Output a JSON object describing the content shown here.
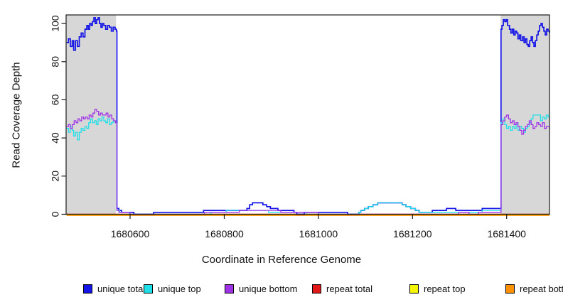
{
  "figure": {
    "x_axis_title": "Coordinate in Reference Genome",
    "y_axis_title": "Read Coverage Depth"
  },
  "chart_data": {
    "type": "line",
    "title": "",
    "xlabel": "Coordinate in Reference Genome",
    "ylabel": "Read Coverage Depth",
    "xlim": [
      1680464,
      1681491
    ],
    "ylim": [
      0,
      104.5
    ],
    "xticks": [
      1680600,
      1680800,
      1681000,
      1681200,
      1681400
    ],
    "yticks": [
      0,
      20,
      40,
      60,
      80,
      100
    ],
    "grid": false,
    "legend_position": "bottom",
    "line_style": "step",
    "shaded_regions": [
      {
        "x0": 1680464,
        "x1": 1680570,
        "color": "#d7d7d7"
      },
      {
        "x0": 1681387,
        "x1": 1681491,
        "color": "#d7d7d7"
      }
    ],
    "series": [
      {
        "name": "unique total",
        "color": "#1414e6",
        "points": [
          [
            1680465,
            90
          ],
          [
            1680469,
            92
          ],
          [
            1680473,
            88
          ],
          [
            1680477,
            91
          ],
          [
            1680480,
            86
          ],
          [
            1680484,
            91
          ],
          [
            1680488,
            88
          ],
          [
            1680492,
            93
          ],
          [
            1680496,
            95
          ],
          [
            1680500,
            93
          ],
          [
            1680504,
            97
          ],
          [
            1680508,
            99
          ],
          [
            1680511,
            97
          ],
          [
            1680514,
            100
          ],
          [
            1680517,
            99
          ],
          [
            1680520,
            101
          ],
          [
            1680523,
            103
          ],
          [
            1680526,
            100
          ],
          [
            1680529,
            102
          ],
          [
            1680532,
            103
          ],
          [
            1680535,
            100
          ],
          [
            1680538,
            98
          ],
          [
            1680541,
            100
          ],
          [
            1680544,
            99
          ],
          [
            1680548,
            97
          ],
          [
            1680552,
            99
          ],
          [
            1680556,
            98
          ],
          [
            1680560,
            96
          ],
          [
            1680564,
            98
          ],
          [
            1680568,
            97
          ],
          [
            1680571,
            96
          ],
          [
            1680572,
            3
          ],
          [
            1680576,
            2
          ],
          [
            1680582,
            1
          ],
          [
            1680604,
            1
          ],
          [
            1680608,
            0
          ],
          [
            1680646,
            0
          ],
          [
            1680650,
            1
          ],
          [
            1680752,
            1
          ],
          [
            1680756,
            2
          ],
          [
            1680844,
            2
          ],
          [
            1680848,
            3
          ],
          [
            1680854,
            5
          ],
          [
            1680860,
            6
          ],
          [
            1680876,
            6
          ],
          [
            1680882,
            5
          ],
          [
            1680890,
            4
          ],
          [
            1680898,
            3
          ],
          [
            1680910,
            3
          ],
          [
            1680914,
            2
          ],
          [
            1680944,
            2
          ],
          [
            1680948,
            1
          ],
          [
            1680954,
            0
          ],
          [
            1680966,
            0
          ],
          [
            1680970,
            1
          ],
          [
            1681058,
            1
          ],
          [
            1681062,
            0
          ],
          [
            1681082,
            0
          ],
          [
            1681086,
            1
          ],
          [
            1681090,
            2
          ],
          [
            1681098,
            3
          ],
          [
            1681106,
            4
          ],
          [
            1681116,
            5
          ],
          [
            1681126,
            6
          ],
          [
            1681170,
            6
          ],
          [
            1681178,
            5
          ],
          [
            1681186,
            4
          ],
          [
            1681196,
            3
          ],
          [
            1681206,
            2
          ],
          [
            1681214,
            1
          ],
          [
            1681238,
            1
          ],
          [
            1681242,
            2
          ],
          [
            1681268,
            2
          ],
          [
            1681272,
            3
          ],
          [
            1681288,
            3
          ],
          [
            1681292,
            2
          ],
          [
            1681336,
            2
          ],
          [
            1681348,
            3
          ],
          [
            1681386,
            3
          ],
          [
            1681388,
            97
          ],
          [
            1681390,
            99
          ],
          [
            1681393,
            102
          ],
          [
            1681396,
            101
          ],
          [
            1681399,
            102
          ],
          [
            1681402,
            99
          ],
          [
            1681406,
            97
          ],
          [
            1681409,
            95
          ],
          [
            1681412,
            97
          ],
          [
            1681415,
            94
          ],
          [
            1681418,
            96
          ],
          [
            1681421,
            95
          ],
          [
            1681424,
            92
          ],
          [
            1681427,
            94
          ],
          [
            1681430,
            91
          ],
          [
            1681434,
            93
          ],
          [
            1681437,
            90
          ],
          [
            1681440,
            92
          ],
          [
            1681443,
            89
          ],
          [
            1681446,
            88
          ],
          [
            1681449,
            91
          ],
          [
            1681452,
            93
          ],
          [
            1681455,
            90
          ],
          [
            1681458,
            88
          ],
          [
            1681461,
            91
          ],
          [
            1681464,
            94
          ],
          [
            1681467,
            96
          ],
          [
            1681470,
            99
          ],
          [
            1681473,
            100
          ],
          [
            1681476,
            98
          ],
          [
            1681479,
            96
          ],
          [
            1681482,
            94
          ],
          [
            1681485,
            97
          ],
          [
            1681488,
            96
          ],
          [
            1681491,
            95
          ]
        ]
      },
      {
        "name": "unique top",
        "color": "#1fe0e8",
        "points": [
          [
            1680465,
            45
          ],
          [
            1680469,
            43
          ],
          [
            1680473,
            46
          ],
          [
            1680477,
            44
          ],
          [
            1680480,
            41
          ],
          [
            1680484,
            43
          ],
          [
            1680488,
            39
          ],
          [
            1680492,
            43
          ],
          [
            1680496,
            45
          ],
          [
            1680500,
            44
          ],
          [
            1680504,
            46
          ],
          [
            1680508,
            45
          ],
          [
            1680512,
            48
          ],
          [
            1680516,
            50
          ],
          [
            1680520,
            48
          ],
          [
            1680524,
            49
          ],
          [
            1680528,
            47
          ],
          [
            1680532,
            50
          ],
          [
            1680536,
            49
          ],
          [
            1680540,
            51
          ],
          [
            1680544,
            49
          ],
          [
            1680548,
            48
          ],
          [
            1680552,
            50
          ],
          [
            1680556,
            47
          ],
          [
            1680560,
            48
          ],
          [
            1680564,
            49
          ],
          [
            1680568,
            48
          ],
          [
            1680571,
            48
          ],
          [
            1680572,
            2
          ],
          [
            1680578,
            1
          ],
          [
            1680594,
            1
          ],
          [
            1680598,
            0
          ],
          [
            1680768,
            0
          ],
          [
            1680772,
            1
          ],
          [
            1680800,
            1
          ],
          [
            1680804,
            2
          ],
          [
            1680890,
            2
          ],
          [
            1680894,
            1
          ],
          [
            1680970,
            1
          ],
          [
            1680974,
            0
          ],
          [
            1681062,
            0
          ],
          [
            1681086,
            1
          ],
          [
            1681090,
            2
          ],
          [
            1681098,
            3
          ],
          [
            1681106,
            4
          ],
          [
            1681116,
            5
          ],
          [
            1681126,
            6
          ],
          [
            1681170,
            6
          ],
          [
            1681178,
            5
          ],
          [
            1681186,
            4
          ],
          [
            1681196,
            3
          ],
          [
            1681206,
            2
          ],
          [
            1681214,
            1
          ],
          [
            1681344,
            1
          ],
          [
            1681348,
            2
          ],
          [
            1681386,
            2
          ],
          [
            1681388,
            48
          ],
          [
            1681392,
            50
          ],
          [
            1681396,
            47
          ],
          [
            1681400,
            45
          ],
          [
            1681404,
            46
          ],
          [
            1681408,
            44
          ],
          [
            1681412,
            46
          ],
          [
            1681416,
            45
          ],
          [
            1681420,
            47
          ],
          [
            1681424,
            44
          ],
          [
            1681428,
            46
          ],
          [
            1681432,
            45
          ],
          [
            1681436,
            43
          ],
          [
            1681440,
            45
          ],
          [
            1681444,
            46
          ],
          [
            1681448,
            48
          ],
          [
            1681452,
            50
          ],
          [
            1681456,
            52
          ],
          [
            1681468,
            52
          ],
          [
            1681472,
            49
          ],
          [
            1681476,
            51
          ],
          [
            1681480,
            50
          ],
          [
            1681484,
            52
          ],
          [
            1681488,
            51
          ],
          [
            1681491,
            50
          ]
        ]
      },
      {
        "name": "unique bottom",
        "color": "#a032e6",
        "points": [
          [
            1680465,
            46
          ],
          [
            1680469,
            47
          ],
          [
            1680473,
            45
          ],
          [
            1680477,
            47
          ],
          [
            1680481,
            49
          ],
          [
            1680485,
            48
          ],
          [
            1680489,
            50
          ],
          [
            1680493,
            49
          ],
          [
            1680497,
            51
          ],
          [
            1680501,
            50
          ],
          [
            1680505,
            51
          ],
          [
            1680509,
            50
          ],
          [
            1680513,
            52
          ],
          [
            1680517,
            51
          ],
          [
            1680521,
            53
          ],
          [
            1680525,
            55
          ],
          [
            1680529,
            54
          ],
          [
            1680533,
            52
          ],
          [
            1680537,
            53
          ],
          [
            1680541,
            52
          ],
          [
            1680545,
            52
          ],
          [
            1680549,
            53
          ],
          [
            1680553,
            51
          ],
          [
            1680557,
            52
          ],
          [
            1680561,
            50
          ],
          [
            1680565,
            49
          ],
          [
            1680569,
            48
          ],
          [
            1680571,
            48
          ],
          [
            1680572,
            2
          ],
          [
            1680576,
            1
          ],
          [
            1680596,
            1
          ],
          [
            1680600,
            0
          ],
          [
            1680754,
            0
          ],
          [
            1680758,
            1
          ],
          [
            1680828,
            1
          ],
          [
            1680832,
            2
          ],
          [
            1680916,
            2
          ],
          [
            1680920,
            1
          ],
          [
            1680996,
            1
          ],
          [
            1681000,
            0
          ],
          [
            1681294,
            0
          ],
          [
            1681298,
            1
          ],
          [
            1681316,
            1
          ],
          [
            1681320,
            0
          ],
          [
            1681336,
            0
          ],
          [
            1681340,
            1
          ],
          [
            1681386,
            1
          ],
          [
            1681388,
            47
          ],
          [
            1681392,
            49
          ],
          [
            1681396,
            51
          ],
          [
            1681400,
            52
          ],
          [
            1681404,
            50
          ],
          [
            1681408,
            48
          ],
          [
            1681412,
            49
          ],
          [
            1681416,
            47
          ],
          [
            1681420,
            48
          ],
          [
            1681424,
            46
          ],
          [
            1681428,
            44
          ],
          [
            1681432,
            42
          ],
          [
            1681436,
            44
          ],
          [
            1681440,
            46
          ],
          [
            1681444,
            47
          ],
          [
            1681448,
            49
          ],
          [
            1681452,
            47
          ],
          [
            1681456,
            45
          ],
          [
            1681460,
            46
          ],
          [
            1681464,
            48
          ],
          [
            1681468,
            47
          ],
          [
            1681472,
            46
          ],
          [
            1681476,
            48
          ],
          [
            1681480,
            45
          ],
          [
            1681484,
            46
          ],
          [
            1681488,
            46
          ],
          [
            1681491,
            45
          ]
        ]
      },
      {
        "name": "repeat total",
        "color": "#e01818",
        "points": [
          [
            1680465,
            0
          ],
          [
            1681491,
            0
          ]
        ]
      },
      {
        "name": "repeat top",
        "color": "#f5f500",
        "points": [
          [
            1680465,
            0
          ],
          [
            1681491,
            0
          ]
        ]
      },
      {
        "name": "repeat bottom",
        "color": "#ff9100",
        "points": [
          [
            1680465,
            0
          ],
          [
            1681491,
            0
          ]
        ]
      }
    ]
  }
}
